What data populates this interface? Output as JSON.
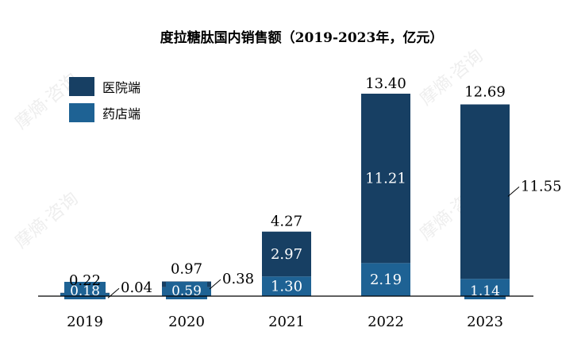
{
  "chart_data": {
    "type": "bar",
    "stacked": true,
    "title": "度拉糖肽国内销售额（2019-2023年，亿元）",
    "categories": [
      "2019",
      "2020",
      "2021",
      "2022",
      "2023"
    ],
    "series": [
      {
        "name": "药店端",
        "values": [
          0.18,
          0.59,
          1.3,
          2.19,
          1.14
        ],
        "color": "#1e6294"
      },
      {
        "name": "医院端",
        "values": [
          0.04,
          0.38,
          2.97,
          11.21,
          11.55
        ],
        "color": "#173f63"
      }
    ],
    "totals": [
      0.22,
      0.97,
      4.27,
      13.4,
      12.69
    ],
    "ylim": [
      0,
      13.4
    ],
    "grid": false,
    "legend_position": "top-left",
    "xlabel": "",
    "ylabel": ""
  },
  "legend": [
    {
      "label": "医院端",
      "color": "#173f63"
    },
    {
      "label": "药店端",
      "color": "#1e6294"
    }
  ],
  "watermark": "摩熵·咨询"
}
